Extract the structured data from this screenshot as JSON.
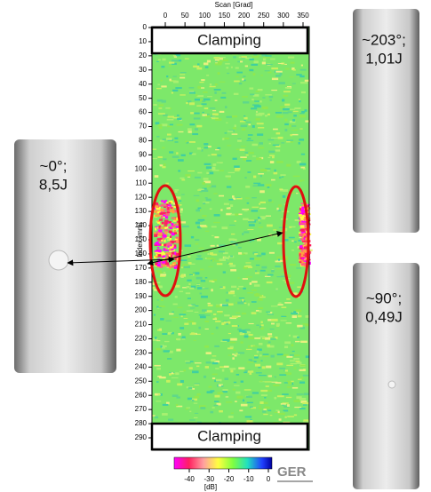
{
  "scan_axis": {
    "label": "Scan [Grad]",
    "ticks": [
      0,
      50,
      100,
      150,
      200,
      250,
      300,
      350
    ]
  },
  "index_axis": {
    "label": "Index [mm]",
    "ticks": [
      0,
      10,
      20,
      30,
      40,
      50,
      60,
      70,
      80,
      90,
      100,
      110,
      120,
      130,
      140,
      150,
      160,
      170,
      180,
      190,
      200,
      210,
      220,
      230,
      240,
      250,
      260,
      270,
      280,
      290
    ]
  },
  "annotations": {
    "top": "Clamping",
    "bottom": "Clamping"
  },
  "colorbar": {
    "ticks": [
      -40,
      -30,
      -20,
      -10,
      0
    ],
    "unit": "[dB]"
  },
  "logo": "GER",
  "photos": [
    {
      "angle": "~0°;",
      "energy": "8,5J"
    },
    {
      "angle": "~203°;",
      "energy": "1,01J"
    },
    {
      "angle": "~90°;",
      "energy": "0,49J"
    }
  ]
}
